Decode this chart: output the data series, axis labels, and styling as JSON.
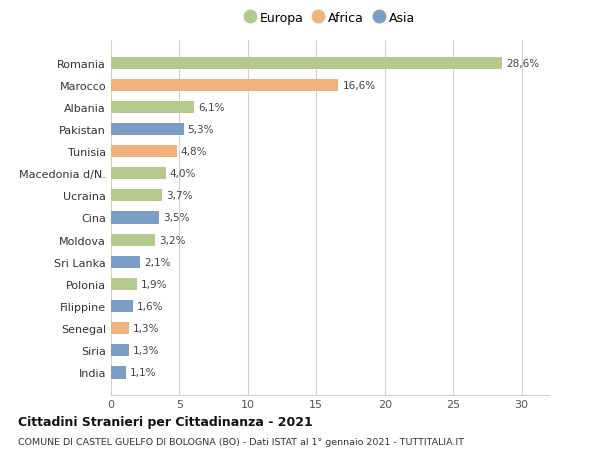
{
  "countries": [
    "Romania",
    "Marocco",
    "Albania",
    "Pakistan",
    "Tunisia",
    "Macedonia d/N.",
    "Ucraina",
    "Cina",
    "Moldova",
    "Sri Lanka",
    "Polonia",
    "Filippine",
    "Senegal",
    "Siria",
    "India"
  ],
  "values": [
    28.6,
    16.6,
    6.1,
    5.3,
    4.8,
    4.0,
    3.7,
    3.5,
    3.2,
    2.1,
    1.9,
    1.6,
    1.3,
    1.3,
    1.1
  ],
  "labels": [
    "28,6%",
    "16,6%",
    "6,1%",
    "5,3%",
    "4,8%",
    "4,0%",
    "3,7%",
    "3,5%",
    "3,2%",
    "2,1%",
    "1,9%",
    "1,6%",
    "1,3%",
    "1,3%",
    "1,1%"
  ],
  "continents": [
    "Europa",
    "Africa",
    "Europa",
    "Asia",
    "Africa",
    "Europa",
    "Europa",
    "Asia",
    "Europa",
    "Asia",
    "Europa",
    "Asia",
    "Africa",
    "Asia",
    "Asia"
  ],
  "colors": {
    "Europa": "#b5c98e",
    "Africa": "#f0b37e",
    "Asia": "#7b9ec7"
  },
  "title_main": "Cittadini Stranieri per Cittadinanza - 2021",
  "title_sub": "COMUNE DI CASTEL GUELFO DI BOLOGNA (BO) - Dati ISTAT al 1° gennaio 2021 - TUTTITALIA.IT",
  "xlim": [
    0,
    32
  ],
  "xticks": [
    0,
    5,
    10,
    15,
    20,
    25,
    30
  ],
  "background_color": "#ffffff",
  "grid_color": "#d0d0d0",
  "bar_height": 0.55
}
